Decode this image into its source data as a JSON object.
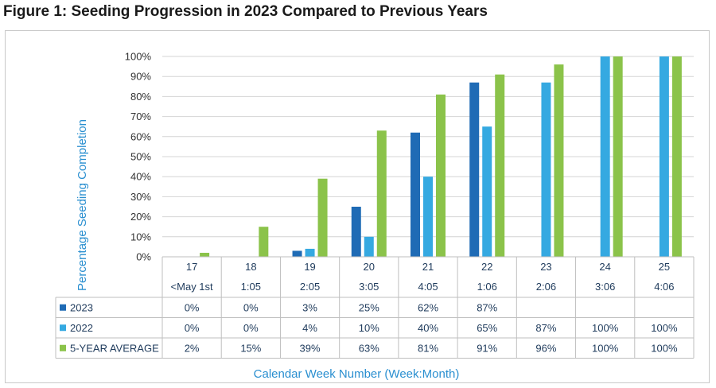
{
  "title": "Figure 1: Seeding Progression in 2023 Compared to Previous Years",
  "chart_data": {
    "type": "bar",
    "ylabel": "Percentage Seeding Completion",
    "xlabel": "Calendar Week Number (Week:Month)",
    "ylim": [
      0,
      100
    ],
    "yticks": [
      "0%",
      "10%",
      "20%",
      "30%",
      "40%",
      "50%",
      "60%",
      "70%",
      "80%",
      "90%",
      "100%"
    ],
    "grid": true,
    "legend": "data-table",
    "categories": [
      "17",
      "18",
      "19",
      "20",
      "21",
      "22",
      "23",
      "24",
      "25"
    ],
    "sublabels": [
      "<May 1st",
      "1:05",
      "2:05",
      "3:05",
      "4:05",
      "1:06",
      "2:06",
      "3:06",
      "4:06"
    ],
    "series": [
      {
        "name": "2023",
        "color": "#1f6bb5",
        "values": [
          0,
          0,
          3,
          25,
          62,
          87,
          null,
          null,
          null
        ],
        "labels": [
          "0%",
          "0%",
          "3%",
          "25%",
          "62%",
          "87%",
          "",
          "",
          ""
        ]
      },
      {
        "name": "2022",
        "color": "#35a9e1",
        "values": [
          0,
          0,
          4,
          10,
          40,
          65,
          87,
          100,
          100
        ],
        "labels": [
          "0%",
          "0%",
          "4%",
          "10%",
          "40%",
          "65%",
          "87%",
          "100%",
          "100%"
        ]
      },
      {
        "name": "5-YEAR AVERAGE",
        "color": "#8bc34a",
        "values": [
          2,
          15,
          39,
          63,
          81,
          91,
          96,
          100,
          100
        ],
        "labels": [
          "2%",
          "15%",
          "39%",
          "63%",
          "81%",
          "91%",
          "96%",
          "100%",
          "100%"
        ]
      }
    ]
  }
}
